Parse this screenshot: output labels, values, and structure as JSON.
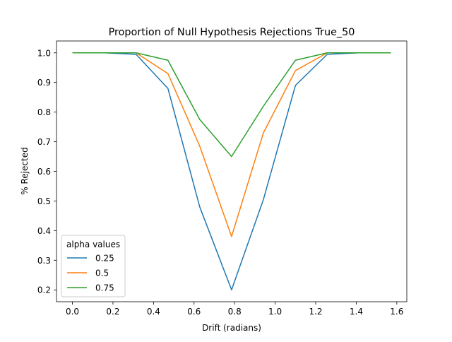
{
  "chart_data": {
    "type": "line",
    "title": "Proportion of Null Hypothesis Rejections True_50",
    "xlabel": "Drift (radians)",
    "ylabel": "% Rejected",
    "xlim": [
      -0.0785,
      1.6493
    ],
    "ylim": [
      0.16,
      1.04
    ],
    "xticks": [
      0.0,
      0.2,
      0.4,
      0.6,
      0.8,
      1.0,
      1.2,
      1.4,
      1.6
    ],
    "xtick_labels": [
      "0.0",
      "0.2",
      "0.4",
      "0.6",
      "0.8",
      "1.0",
      "1.2",
      "1.4",
      "1.6"
    ],
    "yticks": [
      0.2,
      0.3,
      0.4,
      0.5,
      0.6,
      0.7,
      0.8,
      0.9,
      1.0
    ],
    "ytick_labels": [
      "0.2",
      "0.3",
      "0.4",
      "0.5",
      "0.6",
      "0.7",
      "0.8",
      "0.9",
      "1.0"
    ],
    "grid": false,
    "legend": {
      "title": "alpha values",
      "placement": "lower-left"
    },
    "x": [
      0.0,
      0.157,
      0.314,
      0.471,
      0.628,
      0.785,
      0.942,
      1.1,
      1.257,
      1.414,
      1.571
    ],
    "series": [
      {
        "name": "0.25",
        "color": "#1f77b4",
        "values": [
          1.0,
          1.0,
          0.995,
          0.88,
          0.48,
          0.2,
          0.505,
          0.89,
          0.995,
          1.0,
          1.0
        ]
      },
      {
        "name": "0.5",
        "color": "#ff7f0e",
        "values": [
          1.0,
          1.0,
          1.0,
          0.93,
          0.685,
          0.38,
          0.73,
          0.94,
          1.0,
          1.0,
          1.0
        ]
      },
      {
        "name": "0.75",
        "color": "#2ca02c",
        "values": [
          1.0,
          1.0,
          1.0,
          0.975,
          0.775,
          0.65,
          0.82,
          0.975,
          1.0,
          1.0,
          1.0
        ]
      }
    ]
  }
}
